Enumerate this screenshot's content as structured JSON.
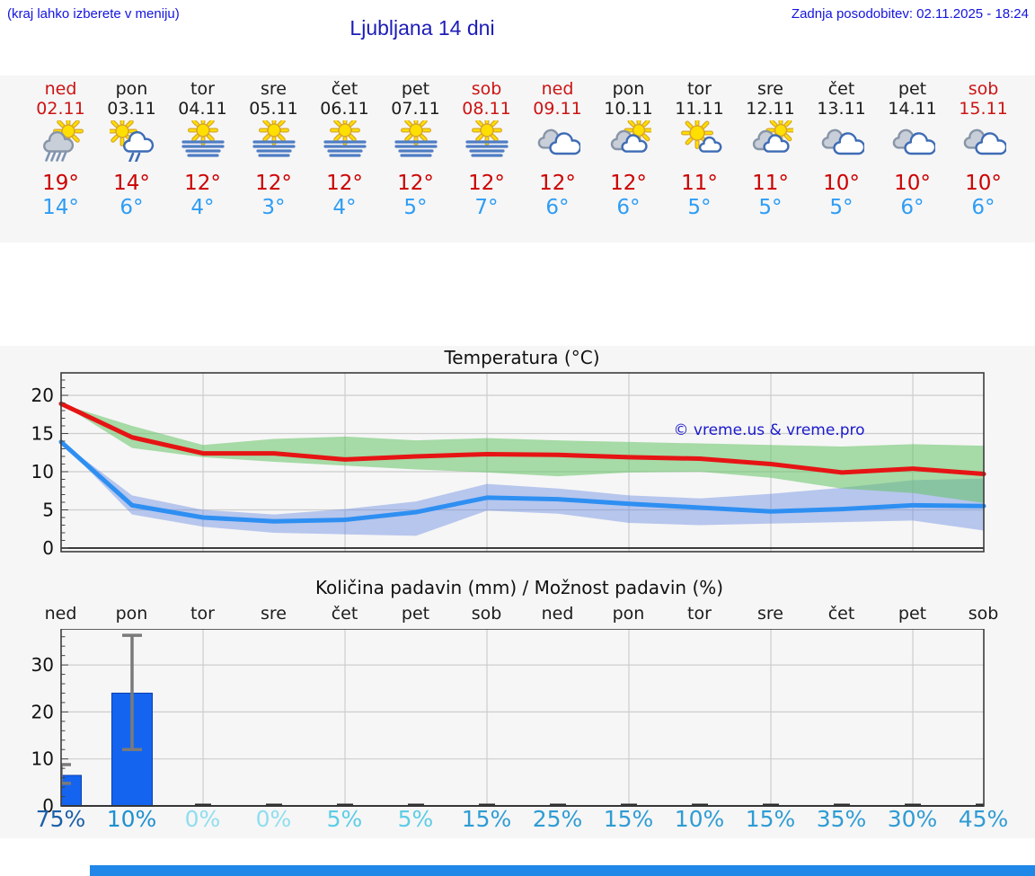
{
  "header": {
    "hint": "(kraj lahko izberete v meniju)",
    "title": "Ljubljana 14 dni",
    "updated": "Zadnja posodobitev: 02.11.2025 - 18:24"
  },
  "watermark": "© vreme.us & vreme.pro",
  "colors": {
    "high_line": "#e61414",
    "high_band": "rgba(100,195,100,0.55)",
    "low_line": "#2e8ff2",
    "low_band": "rgba(95,130,225,0.42)",
    "bar_fill": "#1464f0",
    "whisker": "#7a7a7a",
    "grid": "#cdcdcd",
    "plot_border": "#3c3c3c",
    "plot_bg": "#f6f6f6",
    "weekend_text": "#cc1414",
    "high_text": "#cc0000",
    "low_text": "#2e9df5"
  },
  "days": [
    {
      "name": "ned",
      "date": "02.11",
      "weekend": true,
      "icon": "sun-raincloud",
      "high": "19°",
      "low": "14°",
      "pct": "75%",
      "pct_color": "#1a5fa8"
    },
    {
      "name": "pon",
      "date": "03.11",
      "weekend": false,
      "icon": "sun-shower",
      "high": "14°",
      "low": "6°",
      "pct": "10%",
      "pct_color": "#1e90d0"
    },
    {
      "name": "tor",
      "date": "04.11",
      "weekend": false,
      "icon": "sun-fog",
      "high": "12°",
      "low": "4°",
      "pct": "0%",
      "pct_color": "#8fdef0"
    },
    {
      "name": "sre",
      "date": "05.11",
      "weekend": false,
      "icon": "sun-fog",
      "high": "12°",
      "low": "3°",
      "pct": "0%",
      "pct_color": "#8fdef0"
    },
    {
      "name": "čet",
      "date": "06.11",
      "weekend": false,
      "icon": "sun-fog",
      "high": "12°",
      "low": "4°",
      "pct": "5%",
      "pct_color": "#5ccde6"
    },
    {
      "name": "pet",
      "date": "07.11",
      "weekend": false,
      "icon": "sun-fog",
      "high": "12°",
      "low": "5°",
      "pct": "5%",
      "pct_color": "#5ccde6"
    },
    {
      "name": "sob",
      "date": "08.11",
      "weekend": true,
      "icon": "sun-fog",
      "high": "12°",
      "low": "7°",
      "pct": "15%",
      "pct_color": "#2f9cd4"
    },
    {
      "name": "ned",
      "date": "09.11",
      "weekend": true,
      "icon": "cloudy",
      "high": "12°",
      "low": "6°",
      "pct": "25%",
      "pct_color": "#2f9cd4"
    },
    {
      "name": "pon",
      "date": "10.11",
      "weekend": false,
      "icon": "cloud-sun",
      "high": "12°",
      "low": "6°",
      "pct": "15%",
      "pct_color": "#2f9cd4"
    },
    {
      "name": "tor",
      "date": "11.11",
      "weekend": false,
      "icon": "sun-smallcloud",
      "high": "11°",
      "low": "5°",
      "pct": "10%",
      "pct_color": "#2f9cd4"
    },
    {
      "name": "sre",
      "date": "12.11",
      "weekend": false,
      "icon": "cloud-sun",
      "high": "11°",
      "low": "5°",
      "pct": "15%",
      "pct_color": "#2f9cd4"
    },
    {
      "name": "čet",
      "date": "13.11",
      "weekend": false,
      "icon": "cloudy",
      "high": "10°",
      "low": "5°",
      "pct": "35%",
      "pct_color": "#2f9cd4"
    },
    {
      "name": "pet",
      "date": "14.11",
      "weekend": false,
      "icon": "cloudy",
      "high": "10°",
      "low": "6°",
      "pct": "30%",
      "pct_color": "#2f9cd4"
    },
    {
      "name": "sob",
      "date": "15.11",
      "weekend": true,
      "icon": "cloudy",
      "high": "10°",
      "low": "6°",
      "pct": "45%",
      "pct_color": "#2f9cd4"
    }
  ],
  "chart_data": [
    {
      "type": "line",
      "title": "Temperatura (°C)",
      "categories": [
        "ned 02.11",
        "pon 03.11",
        "tor 04.11",
        "sre 05.11",
        "čet 06.11",
        "pet 07.11",
        "sob 08.11",
        "ned 09.11",
        "pon 10.11",
        "tor 11.11",
        "sre 12.11",
        "čet 13.11",
        "pet 14.11",
        "sob 15.11"
      ],
      "ylabel": "°C",
      "ylim": [
        -0.5,
        23
      ],
      "yticks": [
        0,
        5,
        10,
        15,
        20
      ],
      "grid": true,
      "series": [
        {
          "name": "high",
          "values": [
            18.9,
            14.5,
            12.4,
            12.4,
            11.6,
            12.0,
            12.3,
            12.2,
            11.9,
            11.7,
            11.0,
            9.9,
            10.4,
            9.7
          ]
        },
        {
          "name": "low",
          "values": [
            13.9,
            5.6,
            4.0,
            3.5,
            3.7,
            4.7,
            6.6,
            6.4,
            5.8,
            5.3,
            4.8,
            5.1,
            5.6,
            5.5
          ]
        }
      ],
      "bands": [
        {
          "name": "high-range",
          "hi": [
            18.9,
            16.0,
            13.5,
            14.3,
            14.6,
            14.1,
            14.4,
            14.1,
            13.9,
            13.7,
            13.5,
            13.3,
            13.6,
            13.4
          ],
          "lo": [
            18.9,
            13.1,
            11.9,
            11.3,
            10.8,
            10.3,
            9.9,
            9.4,
            9.9,
            10.0,
            9.2,
            7.8,
            7.2,
            5.9
          ]
        },
        {
          "name": "low-range",
          "hi": [
            13.9,
            6.9,
            5.0,
            4.4,
            5.1,
            6.1,
            8.4,
            7.8,
            6.9,
            6.5,
            7.1,
            7.9,
            8.9,
            9.1
          ],
          "lo": [
            13.9,
            4.4,
            2.8,
            2.0,
            1.8,
            1.6,
            4.9,
            4.5,
            3.3,
            3.0,
            3.2,
            3.4,
            3.6,
            2.3
          ]
        }
      ]
    },
    {
      "type": "bar",
      "title": "Količina padavin (mm) / Možnost padavin (%)",
      "categories": [
        "ned",
        "pon",
        "tor",
        "sre",
        "čet",
        "pet",
        "sob",
        "ned",
        "pon",
        "tor",
        "sre",
        "čet",
        "pet",
        "sob"
      ],
      "ylabel": "mm",
      "ylim": [
        0,
        37.7
      ],
      "yticks": [
        0,
        10,
        20,
        30
      ],
      "grid": true,
      "values": [
        6.5,
        24,
        0,
        0,
        0,
        0,
        0,
        0,
        0,
        0,
        0,
        0,
        0,
        0
      ],
      "error_lo": [
        4.8,
        12,
        null,
        null,
        null,
        null,
        null,
        null,
        null,
        null,
        null,
        null,
        null,
        null
      ],
      "error_hi": [
        8.8,
        36.3,
        null,
        null,
        null,
        null,
        null,
        null,
        null,
        null,
        null,
        null,
        null,
        null
      ],
      "probability_percent": [
        75,
        10,
        0,
        0,
        5,
        5,
        15,
        25,
        15,
        10,
        15,
        35,
        30,
        45
      ]
    }
  ]
}
